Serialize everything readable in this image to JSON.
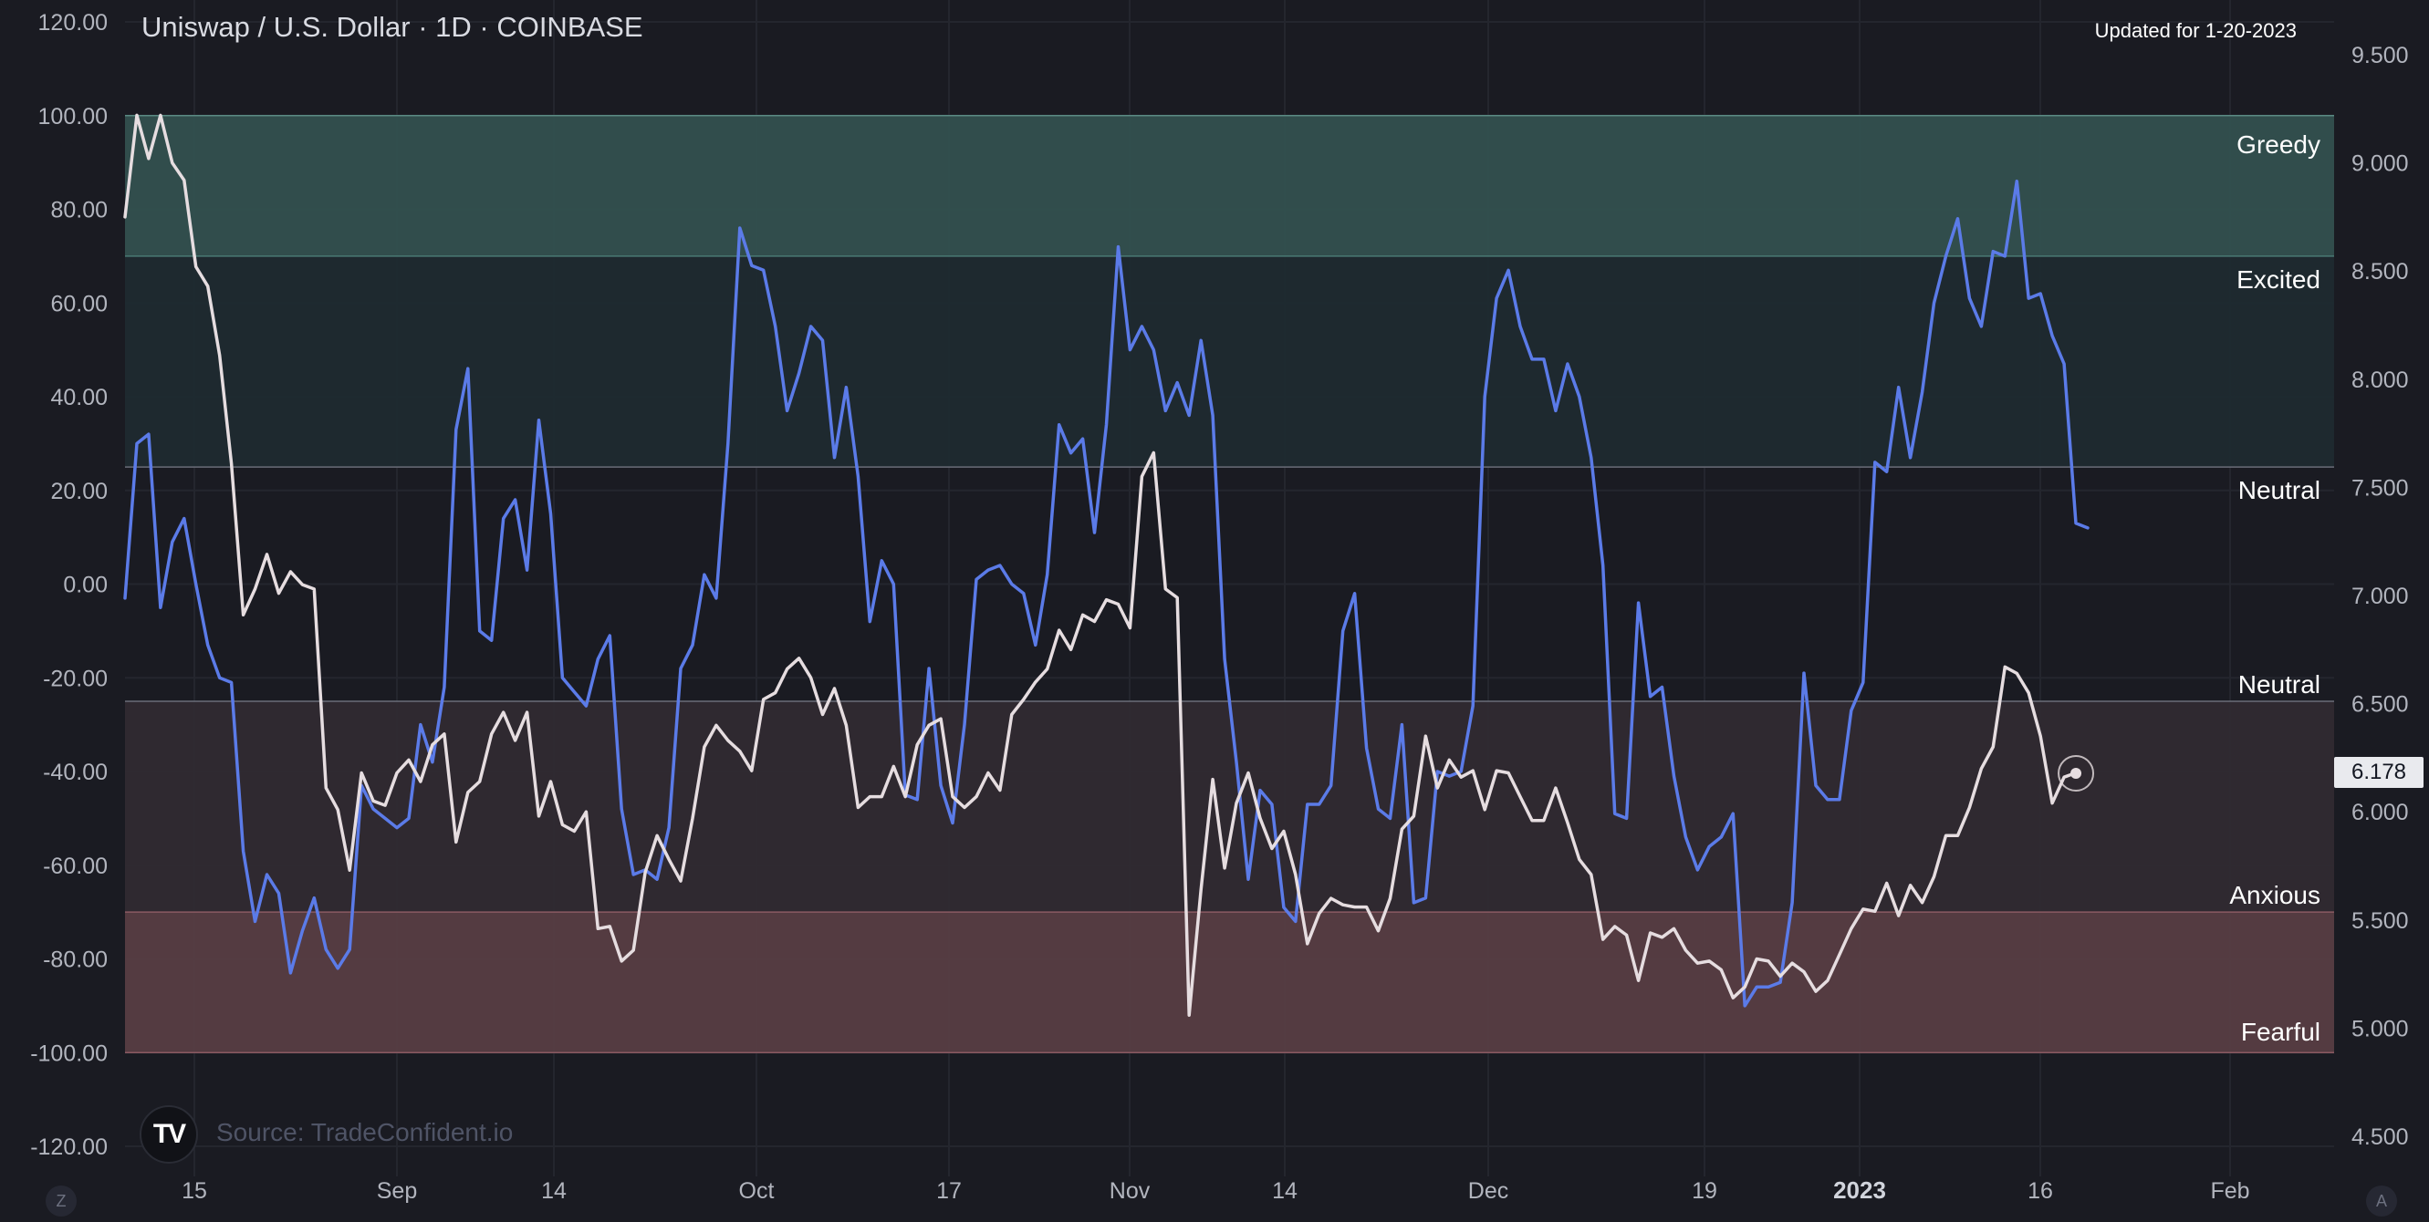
{
  "header": {
    "title": "Uniswap / U.S. Dollar · 1D · COINBASE",
    "updated": "Updated for 1-20-2023"
  },
  "source": {
    "logo_text": "TV",
    "label": "Source: TradeConfident.io"
  },
  "price_badge": "6.178",
  "corner_buttons": {
    "left": "Z",
    "right": "A"
  },
  "colors": {
    "background": "#1a1b22",
    "grid": "#24262e",
    "greedy_zone": "#33504f",
    "excited_zone": "#1f2a30",
    "neutral_low_zone": "#302a32",
    "fearful_zone": "#573d43",
    "sentiment_line": "#5b7be8",
    "price_line": "#e6dde0"
  },
  "chart_data": {
    "type": "line",
    "x_tick_labels": [
      "15",
      "Sep",
      "14",
      "Oct",
      "17",
      "Nov",
      "14",
      "Dec",
      "19",
      "2023",
      "16",
      "Feb"
    ],
    "left_axis": {
      "ticks": [
        "120.00",
        "100.00",
        "80.00",
        "60.00",
        "40.00",
        "20.00",
        "0.00",
        "-20.00",
        "-40.00",
        "-60.00",
        "-80.00",
        "-100.00",
        "-120.00"
      ],
      "range": [
        -120,
        120
      ]
    },
    "right_axis": {
      "ticks": [
        "9.500",
        "9.000",
        "8.500",
        "8.000",
        "7.500",
        "7.000",
        "6.500",
        "6.000",
        "5.500",
        "5.000",
        "4.500"
      ],
      "range": [
        4.5,
        9.5
      ]
    },
    "zones": [
      {
        "label": "Greedy",
        "from": 70,
        "to": 100,
        "color": "#33504f"
      },
      {
        "label": "Excited",
        "from": 25,
        "to": 70,
        "color": "#1f2a30"
      },
      {
        "label": "Neutral",
        "from": 25,
        "to": 25,
        "color": null
      },
      {
        "label": "Neutral",
        "from": -70,
        "to": -25,
        "color": "#302a32"
      },
      {
        "label": "Anxious",
        "from": -70,
        "to": -70,
        "color": null
      },
      {
        "label": "Fearful",
        "from": -100,
        "to": -70,
        "color": "#573d43"
      }
    ],
    "series": [
      {
        "axis": "left",
        "color": "#5b7be8",
        "values": [
          -3,
          30,
          32,
          -5,
          9,
          14,
          0,
          -13,
          -20,
          -21,
          -57,
          -72,
          -62,
          -66,
          -83,
          -74,
          -67,
          -78,
          -82,
          -78,
          -43,
          -48,
          -50,
          -52,
          -50,
          -30,
          -38,
          -22,
          33,
          46,
          -10,
          -12,
          14,
          18,
          3,
          35,
          15,
          -20,
          -23,
          -26,
          -16,
          -11,
          -48,
          -62,
          -61,
          -63,
          -52,
          -18,
          -13,
          2,
          -3,
          30,
          76,
          68,
          67,
          55,
          37,
          45,
          55,
          52,
          27,
          42,
          23,
          -8,
          5,
          0,
          -45,
          -46,
          -18,
          -43,
          -51,
          -30,
          1,
          3,
          4,
          0,
          -2,
          -13,
          2,
          34,
          28,
          31,
          11,
          34,
          72,
          50,
          55,
          50,
          37,
          43,
          36,
          52,
          36,
          -16,
          -38,
          -63,
          -44,
          -47,
          -69,
          -72,
          -47,
          -47,
          -43,
          -10,
          -2,
          -35,
          -48,
          -50,
          -30,
          -68,
          -67,
          -40,
          -41,
          -40,
          -26,
          40,
          61,
          67,
          55,
          48,
          48,
          37,
          47,
          40,
          27,
          4,
          -49,
          -50,
          -4,
          -24,
          -22,
          -41,
          -54,
          -61,
          -56,
          -54,
          -49,
          -90,
          -86,
          -86,
          -85,
          -68,
          -19,
          -43,
          -46,
          -46,
          -27,
          -21,
          26,
          24,
          42,
          27,
          41,
          60,
          70,
          78,
          61,
          55,
          71,
          70,
          86,
          61,
          62,
          53,
          47,
          13,
          12
        ],
        "start_offset": 0
      },
      {
        "axis": "right",
        "color": "#e6dde0",
        "values": [
          8.75,
          9.22,
          9.02,
          9.22,
          9.0,
          8.92,
          8.52,
          8.43,
          8.11,
          7.61,
          6.91,
          7.03,
          7.19,
          7.01,
          7.11,
          7.05,
          7.03,
          6.11,
          6.01,
          5.73,
          6.18,
          6.05,
          6.03,
          6.18,
          6.24,
          6.14,
          6.31,
          6.36,
          5.86,
          6.09,
          6.14,
          6.36,
          6.46,
          6.33,
          6.46,
          5.98,
          6.14,
          5.94,
          5.91,
          6.0,
          5.46,
          5.47,
          5.31,
          5.36,
          5.72,
          5.89,
          5.78,
          5.68,
          5.97,
          6.3,
          6.4,
          6.33,
          6.28,
          6.19,
          6.52,
          6.55,
          6.66,
          6.71,
          6.62,
          6.45,
          6.57,
          6.4,
          6.02,
          6.07,
          6.07,
          6.21,
          6.07,
          6.31,
          6.4,
          6.43,
          6.07,
          6.02,
          6.07,
          6.18,
          6.1,
          6.45,
          6.52,
          6.6,
          6.66,
          6.84,
          6.75,
          6.91,
          6.88,
          6.98,
          6.96,
          6.85,
          7.55,
          7.66,
          7.03,
          6.99,
          5.06,
          5.64,
          6.15,
          5.74,
          6.04,
          6.18,
          5.97,
          5.83,
          5.91,
          5.71,
          5.39,
          5.53,
          5.6,
          5.57,
          5.56,
          5.56,
          5.45,
          5.6,
          5.92,
          5.98,
          6.35,
          6.11,
          6.24,
          6.16,
          6.19,
          6.01,
          6.19,
          6.18,
          6.07,
          5.96,
          5.96,
          6.11,
          5.95,
          5.78,
          5.71,
          5.41,
          5.47,
          5.43,
          5.22,
          5.44,
          5.42,
          5.46,
          5.36,
          5.3,
          5.31,
          5.27,
          5.14,
          5.19,
          5.32,
          5.31,
          5.24,
          5.3,
          5.26,
          5.17,
          5.22,
          5.34,
          5.46,
          5.55,
          5.54,
          5.67,
          5.52,
          5.66,
          5.58,
          5.7,
          5.89,
          5.89,
          6.02,
          6.2,
          6.3,
          6.67,
          6.64,
          6.55,
          6.35,
          6.04,
          6.16,
          6.18
        ],
        "start_offset": 0
      }
    ],
    "last_point": {
      "axis": "right",
      "value": 6.178
    }
  }
}
